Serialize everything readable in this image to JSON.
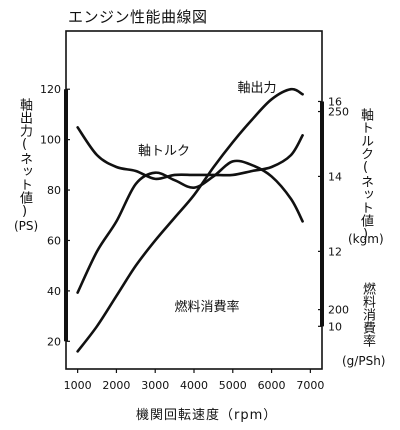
{
  "chart_data": {
    "type": "line",
    "title": "エンジン性能曲線図",
    "xlabel": "機関回転速度（rpm）",
    "x_ticks": [
      1000,
      2000,
      3000,
      4000,
      5000,
      6000,
      7000
    ],
    "xlim": [
      700,
      7300
    ],
    "left_axis": {
      "label": "軸出力(ネット値)",
      "unit": "(PS)",
      "ticks": [
        20,
        40,
        60,
        80,
        100,
        120
      ],
      "ylim": [
        11,
        130
      ]
    },
    "right_axis_torque": {
      "label": "軸トルク(ネット値)",
      "unit": "(kgm)",
      "ticks": [
        10,
        12,
        14,
        16
      ],
      "range": [
        9.6,
        17.0
      ]
    },
    "right_axis_fuel": {
      "label": "燃料消費率",
      "unit": "(g/PSh)",
      "ticks": [
        200,
        250
      ],
      "range": [
        192,
        262
      ]
    },
    "series": [
      {
        "name": "軸出力",
        "axis": "left",
        "x": [
          1000,
          1500,
          2000,
          2500,
          3000,
          3500,
          4000,
          4500,
          5000,
          5500,
          6000,
          6500,
          6800
        ],
        "y": [
          16,
          26,
          38,
          50,
          60,
          69,
          78,
          89,
          99,
          108,
          116,
          120,
          118
        ]
      },
      {
        "name": "軸トルク",
        "axis": "torque",
        "x": [
          1000,
          1500,
          2000,
          2500,
          3000,
          3500,
          4000,
          4500,
          5000,
          5500,
          6000,
          6500,
          6800
        ],
        "y": [
          10.9,
          12.0,
          12.8,
          13.8,
          14.1,
          13.9,
          13.7,
          14.0,
          14.4,
          14.3,
          14.0,
          13.4,
          12.8
        ]
      },
      {
        "name": "燃料消費率",
        "axis": "fuel",
        "x": [
          1000,
          1500,
          2000,
          2500,
          3000,
          3500,
          4000,
          4500,
          5000,
          5500,
          6000,
          6500,
          6800
        ],
        "y": [
          246,
          239,
          236,
          235,
          233,
          234,
          234,
          234,
          234,
          235,
          236,
          239,
          244
        ]
      }
    ]
  }
}
